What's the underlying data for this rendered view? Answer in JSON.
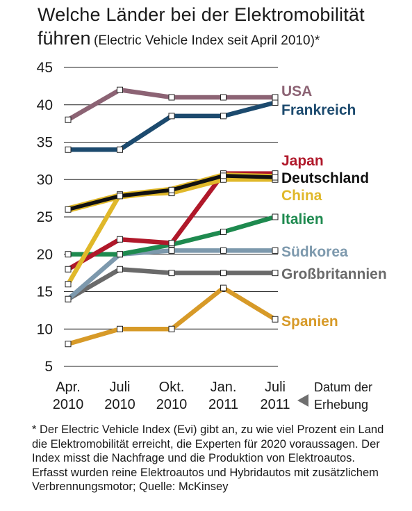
{
  "header": {
    "title_line1": "Welche Länder bei der Elektromobilität",
    "title_line2": "führen",
    "subtitle": "(Electric Vehicle Index seit April 2010)*"
  },
  "chart_data": {
    "type": "line",
    "title": "Welche Länder bei der Elektromobilität führen",
    "subtitle": "(Electric Vehicle Index seit April 2010)*",
    "x": [
      [
        "Apr.",
        "2010"
      ],
      [
        "Juli",
        "2010"
      ],
      [
        "Okt.",
        "2010"
      ],
      [
        "Jan.",
        "2011"
      ],
      [
        "Juli",
        "2011"
      ]
    ],
    "xlabel": [
      "Datum der",
      "Erhebung"
    ],
    "ylim": [
      5,
      45
    ],
    "yticks": [
      5,
      10,
      15,
      20,
      25,
      30,
      35,
      40,
      45
    ],
    "grid": true,
    "series": [
      {
        "name": "USA",
        "color": "#8c6374",
        "values": [
          38,
          42,
          41,
          41,
          41
        ]
      },
      {
        "name": "Frankreich",
        "color": "#1c4a6e",
        "values": [
          34,
          34,
          38.5,
          38.5,
          40.3
        ]
      },
      {
        "name": "Japan",
        "color": "#b0182a",
        "values": [
          18,
          22,
          21.5,
          30.8,
          30.8
        ]
      },
      {
        "name": "Deutschland",
        "color": "#111111",
        "values": [
          26,
          27.8,
          28.6,
          30.5,
          30.3
        ]
      },
      {
        "name": "China",
        "color": "#e0b82a",
        "values": [
          16,
          28,
          28.2,
          30,
          30
        ]
      },
      {
        "name": "Italien",
        "color": "#1e8a4f",
        "values": [
          20,
          20,
          21.3,
          23,
          25
        ]
      },
      {
        "name": "Südkorea",
        "color": "#7d99ad",
        "values": [
          14,
          20,
          20.5,
          20.5,
          20.5
        ]
      },
      {
        "name": "Großbritannien",
        "color": "#6a6a6a",
        "values": [
          14,
          18,
          17.5,
          17.5,
          17.5
        ]
      },
      {
        "name": "Spanien",
        "color": "#d79a28",
        "values": [
          8,
          10,
          10,
          15.5,
          11.3
        ]
      }
    ]
  },
  "footnote": "* Der Electric Vehicle Index (Evi) gibt an, zu wie viel Prozent ein Land die Elektromobilität erreicht, die Experten für 2020 voraussagen. Der Index misst die Nachfrage und die Produktion von Elektroautos. Erfasst wurden reine Elektroautos und Hybridautos mit zusätzlichem Verbrennungsmotor; Quelle: McKinsey"
}
